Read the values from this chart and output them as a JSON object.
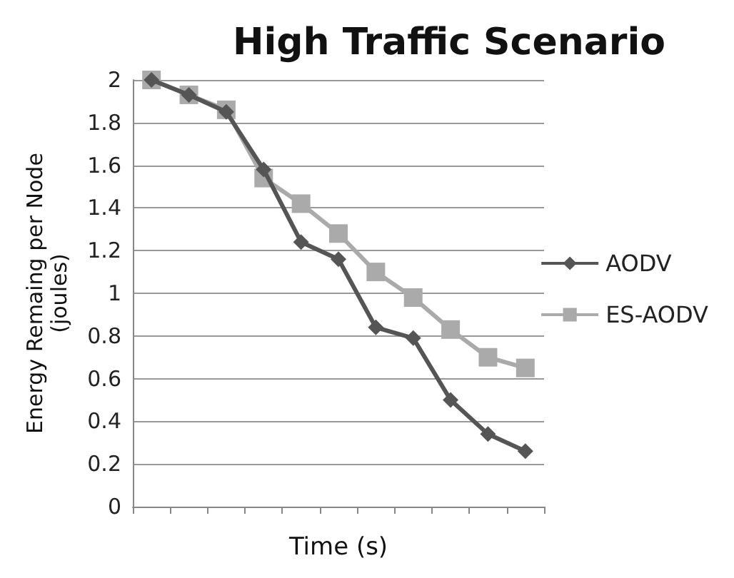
{
  "chart_data": {
    "type": "line",
    "title": "High Traffic Scenario",
    "xlabel": "Time (s)",
    "ylabel": "Energy Remaing per Node\n(joules)",
    "categories": [
      null,
      null,
      null,
      null,
      null,
      null,
      null,
      null,
      null,
      null,
      null
    ],
    "series": [
      {
        "name": "AODV",
        "color": "#555555",
        "marker": "diamond",
        "values": [
          2.0,
          1.93,
          1.85,
          1.58,
          1.24,
          1.16,
          0.84,
          0.79,
          0.5,
          0.34,
          0.26
        ]
      },
      {
        "name": "ES-AODV",
        "color": "#aaaaaa",
        "marker": "square",
        "values": [
          2.0,
          1.93,
          1.86,
          1.54,
          1.42,
          1.28,
          1.1,
          0.98,
          0.83,
          0.7,
          0.65
        ]
      }
    ],
    "ylim": [
      0,
      2
    ],
    "yticks": [
      0,
      0.2,
      0.4,
      0.6,
      0.8,
      1,
      1.2,
      1.4,
      1.6,
      1.8,
      2
    ],
    "grid": "y",
    "legend": "right",
    "line_style": "solid"
  }
}
